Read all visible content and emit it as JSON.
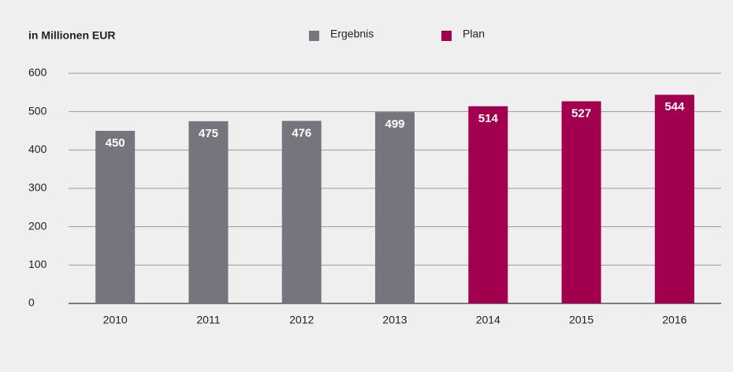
{
  "chart_data": {
    "type": "bar",
    "axis_label": "in Millionen EUR",
    "categories": [
      "2010",
      "2011",
      "2012",
      "2013",
      "2014",
      "2015",
      "2016"
    ],
    "series": [
      {
        "name": "Ergebnis",
        "color": "#76747c",
        "values": [
          450,
          475,
          476,
          499,
          null,
          null,
          null
        ]
      },
      {
        "name": "Plan",
        "color": "#a2004f",
        "values": [
          null,
          null,
          null,
          null,
          514,
          527,
          544
        ]
      }
    ],
    "ylim": [
      0,
      600
    ],
    "yticks": [
      0,
      100,
      200,
      300,
      400,
      500,
      600
    ],
    "grid": true,
    "legend": "top"
  }
}
